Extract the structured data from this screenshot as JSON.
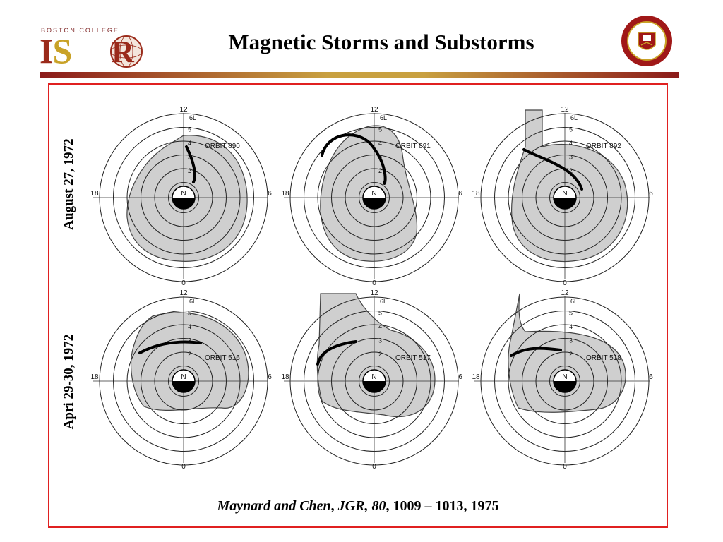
{
  "header": {
    "logo_small": "BOSTON COLLEGE",
    "logo_big_a": "I",
    "logo_big_b": "S",
    "logo_big_c": "R",
    "title": "Magnetic Storms and Substorms",
    "seal_text": "COLLEGIUM BOSTONIENSIS"
  },
  "rows": [
    {
      "label": "August 27, 1972"
    },
    {
      "label": "Apri 29-30, 1972"
    }
  ],
  "panels": [
    {
      "orbit": "ORBIT 890"
    },
    {
      "orbit": "ORBIT 891"
    },
    {
      "orbit": "ORBIT 892"
    },
    {
      "orbit": "ORBIT 516"
    },
    {
      "orbit": "ORBIT 517"
    },
    {
      "orbit": "ORBIT 518"
    }
  ],
  "axis_labels": {
    "top": "12",
    "bottom": "0",
    "left": "18",
    "right": "6",
    "center": "N",
    "l_top": "6L"
  },
  "citation": {
    "authors": "Maynard and Chen",
    "sep1": ", ",
    "journal": "JGR,",
    "sep2": " ",
    "volume": "80",
    "rest": ", 1009 – 1013, 1975"
  },
  "colors": {
    "frame": "#e02020",
    "brand": "#9a2a1a",
    "gold": "#c9a227"
  }
}
